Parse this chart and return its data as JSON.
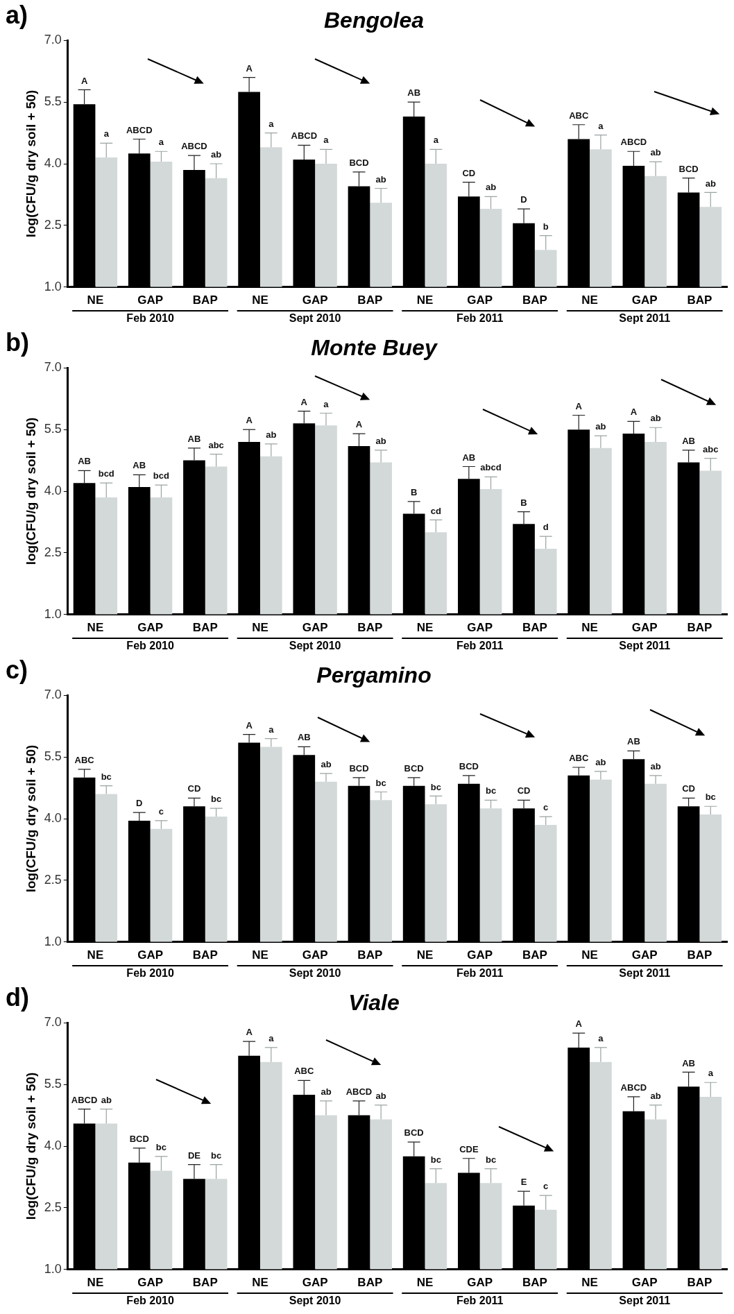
{
  "chart_data": [
    {
      "type": "bar",
      "title": "Bengolea",
      "ylabel": "log(CFU/g dry soil + 50)",
      "annotations": [
        "a)",
        "Feb 2010",
        "Sept 2010",
        "Feb 2011",
        "Sept 2011"
      ],
      "categories": [
        "NE",
        "GAP",
        "BAP",
        "NE",
        "GAP",
        "BAP",
        "NE",
        "GAP",
        "BAP",
        "NE",
        "GAP",
        "BAP"
      ],
      "ylim": [
        1,
        7
      ],
      "yticks": [
        {
          "value": 1,
          "label": "1.0"
        },
        {
          "value": 2.5,
          "label": "2.5"
        },
        {
          "value": 4,
          "label": "4.0"
        },
        {
          "value": 5.5,
          "label": "5.5"
        },
        {
          "value": 7,
          "label": "7.0"
        }
      ],
      "series": [
        {
          "color": "#000000",
          "values": [
            5.45,
            4.25,
            3.85,
            5.75,
            4.1,
            3.45,
            5.15,
            3.2,
            2.55,
            4.6,
            3.95,
            3.3
          ],
          "errors": [
            0.35,
            0.35,
            0.35,
            0.35,
            0.35,
            0.35,
            0.35,
            0.35,
            0.35,
            0.35,
            0.35,
            0.35
          ],
          "value_labels": [
            "A",
            "ABCD",
            "ABCD",
            "A",
            "ABCD",
            "BCD",
            "AB",
            "CD",
            "D",
            "ABC",
            "ABCD",
            "BCD"
          ]
        },
        {
          "color": "#d3d9d9",
          "values": [
            4.15,
            4.05,
            3.65,
            4.4,
            4.0,
            3.05,
            4.0,
            2.9,
            1.9,
            4.35,
            3.7,
            2.95
          ],
          "errors": [
            0.35,
            0.25,
            0.35,
            0.35,
            0.35,
            0.35,
            0.35,
            0.3,
            0.35,
            0.35,
            0.35,
            0.35
          ],
          "value_labels": [
            "a",
            "a",
            "ab",
            "a",
            "a",
            "ab",
            "a",
            "ab",
            "b",
            "a",
            "ab",
            "ab"
          ]
        }
      ]
    },
    {
      "type": "bar",
      "title": "Monte Buey",
      "ylabel": "log(CFU/g dry soil + 50)",
      "annotations": [
        "b)",
        "Feb 2010",
        "Sept 2010",
        "Feb 2011",
        "Sept 2011"
      ],
      "categories": [
        "NE",
        "GAP",
        "BAP",
        "NE",
        "GAP",
        "BAP",
        "NE",
        "GAP",
        "BAP",
        "NE",
        "GAP",
        "BAP"
      ],
      "ylim": [
        1,
        7
      ],
      "yticks": [
        {
          "value": 1,
          "label": "1.0"
        },
        {
          "value": 2.5,
          "label": "2.5"
        },
        {
          "value": 4,
          "label": "4.0"
        },
        {
          "value": 5.5,
          "label": "5.5"
        },
        {
          "value": 7,
          "label": "7.0"
        }
      ],
      "series": [
        {
          "color": "#000000",
          "values": [
            4.2,
            4.1,
            4.75,
            5.2,
            5.65,
            5.1,
            3.45,
            4.3,
            3.2,
            5.5,
            5.4,
            4.7
          ],
          "errors": [
            0.3,
            0.3,
            0.3,
            0.3,
            0.3,
            0.3,
            0.3,
            0.3,
            0.3,
            0.35,
            0.3,
            0.3
          ],
          "value_labels": [
            "AB",
            "AB",
            "AB",
            "A",
            "A",
            "A",
            "B",
            "AB",
            "B",
            "A",
            "A",
            "AB"
          ]
        },
        {
          "color": "#d3d9d9",
          "values": [
            3.85,
            3.85,
            4.6,
            4.85,
            5.6,
            4.7,
            3.0,
            4.05,
            2.6,
            5.05,
            5.2,
            4.5
          ],
          "errors": [
            0.35,
            0.3,
            0.3,
            0.3,
            0.3,
            0.3,
            0.3,
            0.3,
            0.3,
            0.3,
            0.35,
            0.3
          ],
          "value_labels": [
            "bcd",
            "bcd",
            "abc",
            "ab",
            "a",
            "ab",
            "cd",
            "abcd",
            "d",
            "ab",
            "ab",
            "abc"
          ]
        }
      ]
    },
    {
      "type": "bar",
      "title": "Pergamino",
      "ylabel": "log(CFU/g dry soil + 50)",
      "annotations": [
        "c)",
        "Feb 2010",
        "Sept 2010",
        "Feb 2011",
        "Sept 2011"
      ],
      "categories": [
        "NE",
        "GAP",
        "BAP",
        "NE",
        "GAP",
        "BAP",
        "NE",
        "GAP",
        "BAP",
        "NE",
        "GAP",
        "BAP"
      ],
      "ylim": [
        1,
        7
      ],
      "yticks": [
        {
          "value": 1,
          "label": "1.0"
        },
        {
          "value": 2.5,
          "label": "2.5"
        },
        {
          "value": 4,
          "label": "4.0"
        },
        {
          "value": 5.5,
          "label": "5.5"
        },
        {
          "value": 7,
          "label": "7.0"
        }
      ],
      "series": [
        {
          "color": "#000000",
          "values": [
            5.0,
            3.95,
            4.3,
            5.85,
            5.55,
            4.8,
            4.8,
            4.85,
            4.25,
            5.05,
            5.45,
            4.3
          ],
          "errors": [
            0.2,
            0.2,
            0.2,
            0.2,
            0.2,
            0.2,
            0.2,
            0.2,
            0.2,
            0.2,
            0.2,
            0.2
          ],
          "value_labels": [
            "ABC",
            "D",
            "CD",
            "A",
            "AB",
            "BCD",
            "BCD",
            "BCD",
            "CD",
            "ABC",
            "AB",
            "CD"
          ]
        },
        {
          "color": "#d3d9d9",
          "values": [
            4.6,
            3.75,
            4.05,
            5.75,
            4.9,
            4.45,
            4.35,
            4.25,
            3.85,
            4.95,
            4.85,
            4.1
          ],
          "errors": [
            0.2,
            0.2,
            0.2,
            0.2,
            0.2,
            0.2,
            0.2,
            0.2,
            0.2,
            0.2,
            0.2,
            0.2
          ],
          "value_labels": [
            "bc",
            "c",
            "bc",
            "a",
            "ab",
            "bc",
            "bc",
            "bc",
            "c",
            "ab",
            "ab",
            "bc"
          ]
        }
      ]
    },
    {
      "type": "bar",
      "title": "Viale",
      "ylabel": "log(CFU/g dry soil + 50)",
      "annotations": [
        "d)",
        "Feb 2010",
        "Sept 2010",
        "Feb 2011",
        "Sept 2011"
      ],
      "categories": [
        "NE",
        "GAP",
        "BAP",
        "NE",
        "GAP",
        "BAP",
        "NE",
        "GAP",
        "BAP",
        "NE",
        "GAP",
        "BAP"
      ],
      "ylim": [
        1,
        7
      ],
      "yticks": [
        {
          "value": 1,
          "label": "1.0"
        },
        {
          "value": 2.5,
          "label": "2.5"
        },
        {
          "value": 4,
          "label": "4.0"
        },
        {
          "value": 5.5,
          "label": "5.5"
        },
        {
          "value": 7,
          "label": "7.0"
        }
      ],
      "series": [
        {
          "color": "#000000",
          "values": [
            4.55,
            3.6,
            3.2,
            6.2,
            5.25,
            4.75,
            3.75,
            3.35,
            2.55,
            6.4,
            4.85,
            5.45
          ],
          "errors": [
            0.35,
            0.35,
            0.35,
            0.35,
            0.35,
            0.35,
            0.35,
            0.35,
            0.35,
            0.35,
            0.35,
            0.35
          ],
          "value_labels": [
            "ABCD",
            "BCD",
            "DE",
            "A",
            "ABC",
            "ABCD",
            "BCD",
            "CDE",
            "E",
            "A",
            "ABCD",
            "AB"
          ]
        },
        {
          "color": "#d3d9d9",
          "values": [
            4.55,
            3.4,
            3.2,
            6.05,
            4.75,
            4.65,
            3.1,
            3.1,
            2.45,
            6.05,
            4.65,
            5.2
          ],
          "errors": [
            0.35,
            0.35,
            0.35,
            0.35,
            0.35,
            0.35,
            0.35,
            0.35,
            0.35,
            0.35,
            0.35,
            0.35
          ],
          "value_labels": [
            "ab",
            "bc",
            "bc",
            "a",
            "ab",
            "ab",
            "bc",
            "bc",
            "c",
            "a",
            "ab",
            "a"
          ]
        }
      ]
    }
  ]
}
